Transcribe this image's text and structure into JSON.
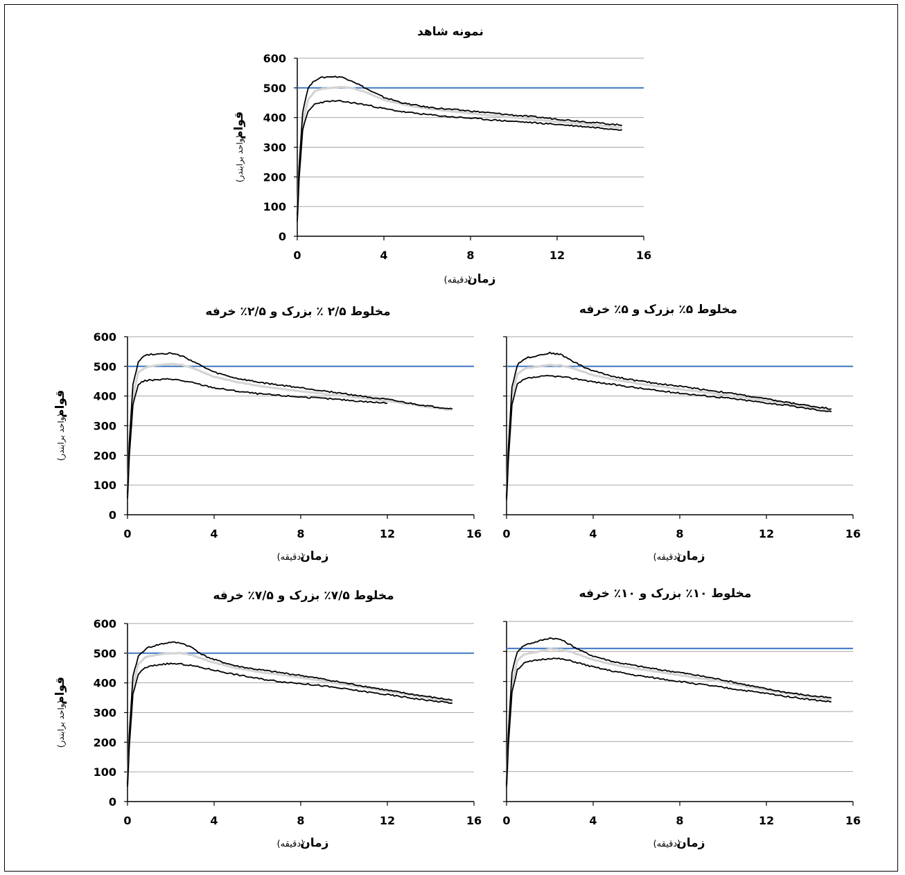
{
  "colors": {
    "target_line": "#4a7fc4",
    "grid": "#a6a6a6",
    "curve_outer": "#000000",
    "curve_mid": "#d4d4d4",
    "axis": "#000000"
  },
  "chart_data": [
    {
      "id": "p1",
      "type": "line",
      "title": "نمونه شاهد",
      "xlabel": "زمان",
      "xlabel_unit": "(دقیقه)",
      "ylabel": "قوام",
      "ylabel_unit": "(واحد برابندر)",
      "xlim": [
        0,
        16
      ],
      "ylim": [
        0,
        600
      ],
      "xticks": [
        "0",
        "4",
        "8",
        "12",
        "16"
      ],
      "yticks": [
        "0",
        "100",
        "200",
        "300",
        "400",
        "500",
        "600"
      ],
      "grid": true,
      "reference_line_y": 500,
      "series": [
        {
          "role": "upper",
          "x": [
            0,
            0.08,
            0.25,
            0.5,
            0.8,
            1,
            1.5,
            2,
            2.5,
            3,
            3.5,
            4,
            5,
            6,
            7,
            8,
            9,
            10,
            11,
            12,
            13,
            14,
            15
          ],
          "values": [
            70,
            230,
            420,
            500,
            525,
            533,
            538,
            537,
            525,
            505,
            485,
            468,
            447,
            435,
            428,
            422,
            415,
            408,
            402,
            395,
            388,
            381,
            374
          ]
        },
        {
          "role": "middle",
          "x": [
            0,
            0.08,
            0.25,
            0.5,
            0.8,
            1,
            1.5,
            2,
            2.5,
            3,
            3.5,
            4,
            5,
            6,
            7,
            8,
            9,
            10,
            11,
            12,
            13,
            14,
            15
          ],
          "values": [
            60,
            210,
            385,
            460,
            488,
            495,
            500,
            503,
            500,
            490,
            475,
            460,
            442,
            430,
            422,
            414,
            407,
            400,
            393,
            386,
            380,
            373,
            366
          ]
        },
        {
          "role": "lower",
          "x": [
            0,
            0.08,
            0.25,
            0.5,
            0.8,
            1,
            1.5,
            2,
            2.5,
            3,
            3.5,
            4,
            5,
            6,
            7,
            8,
            9,
            10,
            11,
            12,
            13,
            14,
            15
          ],
          "values": [
            50,
            190,
            360,
            420,
            445,
            450,
            455,
            455,
            450,
            445,
            438,
            430,
            418,
            410,
            403,
            398,
            392,
            387,
            382,
            377,
            371,
            365,
            359
          ]
        }
      ]
    },
    {
      "id": "p2",
      "type": "line",
      "title": "مخلوط ۲/۵ ٪ بزرک و ۲/۵٪ خرفه",
      "xlabel": "زمان",
      "xlabel_unit": "(دقیقه)",
      "ylabel": "قوام",
      "ylabel_unit": "(واحد برابندر)",
      "xlim": [
        0,
        16
      ],
      "ylim": [
        0,
        600
      ],
      "xticks": [
        "0",
        "4",
        "8",
        "12",
        "16"
      ],
      "yticks": [
        "0",
        "100",
        "200",
        "300",
        "400",
        "500",
        "600"
      ],
      "grid": true,
      "reference_line_y": 500,
      "series": [
        {
          "role": "upper",
          "x": [
            0,
            0.08,
            0.25,
            0.5,
            0.8,
            1,
            1.5,
            2,
            2.5,
            3,
            3.5,
            4,
            5,
            6,
            7,
            8,
            9,
            10,
            11,
            12,
            13,
            14,
            15
          ],
          "values": [
            70,
            240,
            440,
            515,
            538,
            540,
            543,
            544,
            535,
            518,
            498,
            480,
            460,
            447,
            437,
            428,
            418,
            408,
            398,
            388,
            376,
            365,
            357
          ]
        },
        {
          "role": "middle",
          "x": [
            0,
            0.08,
            0.25,
            0.5,
            0.8,
            1,
            1.5,
            2,
            2.5,
            3,
            3.5,
            4,
            5,
            6,
            7,
            8,
            9,
            10,
            11,
            12,
            13,
            14,
            15
          ],
          "values": [
            60,
            215,
            400,
            480,
            495,
            500,
            505,
            508,
            505,
            495,
            480,
            465,
            448,
            435,
            425,
            416,
            408,
            400,
            392,
            384,
            373,
            362,
            353
          ]
        },
        {
          "role": "lower",
          "x": [
            0,
            0.08,
            0.25,
            0.5,
            0.8,
            1,
            1.5,
            2,
            2.5,
            3,
            3.5,
            4,
            5,
            6,
            7,
            8,
            9,
            10,
            11,
            12
          ],
          "values": [
            55,
            195,
            370,
            440,
            452,
            453,
            455,
            458,
            452,
            445,
            436,
            428,
            417,
            408,
            402,
            397,
            392,
            387,
            381,
            376
          ]
        }
      ]
    },
    {
      "id": "p3",
      "type": "line",
      "title": "مخلوط ۵٪ بزرک و ۵٪ خرفه",
      "xlabel": "زمان",
      "xlabel_unit": "(دقیقه)",
      "ylabel": "",
      "ylabel_unit": "",
      "xlim": [
        0,
        16
      ],
      "ylim": [
        0,
        600
      ],
      "xticks": [
        "0",
        "4",
        "8",
        "12",
        "16"
      ],
      "yticks": [],
      "grid": true,
      "reference_line_y": 500,
      "series": [
        {
          "role": "upper",
          "x": [
            0,
            0.08,
            0.25,
            0.5,
            0.8,
            1,
            1.5,
            2,
            2.5,
            3,
            3.5,
            4,
            5,
            6,
            7,
            8,
            9,
            10,
            11,
            12,
            13,
            14,
            15
          ],
          "values": [
            60,
            220,
            430,
            505,
            525,
            530,
            538,
            545,
            540,
            520,
            500,
            485,
            465,
            452,
            442,
            433,
            423,
            413,
            402,
            390,
            378,
            367,
            357
          ]
        },
        {
          "role": "middle",
          "x": [
            0,
            0.08,
            0.25,
            0.5,
            0.8,
            1,
            1.5,
            2,
            2.5,
            3,
            3.5,
            4,
            5,
            6,
            7,
            8,
            9,
            10,
            11,
            12,
            13,
            14,
            15
          ],
          "values": [
            55,
            200,
            400,
            475,
            490,
            495,
            500,
            505,
            503,
            495,
            483,
            470,
            455,
            443,
            433,
            423,
            414,
            405,
            395,
            385,
            374,
            363,
            352
          ]
        },
        {
          "role": "lower",
          "x": [
            0,
            0.08,
            0.25,
            0.5,
            0.8,
            1,
            1.5,
            2,
            2.5,
            3,
            3.5,
            4,
            5,
            6,
            7,
            8,
            9,
            10,
            11,
            12,
            13,
            14,
            15
          ],
          "values": [
            50,
            180,
            370,
            440,
            455,
            460,
            465,
            468,
            465,
            460,
            455,
            448,
            438,
            428,
            418,
            410,
            402,
            395,
            386,
            377,
            368,
            357,
            347
          ]
        }
      ]
    },
    {
      "id": "p4",
      "type": "line",
      "title": "مخلوط ۷/۵٪ بزرک و ۷/۵٪ خرفه",
      "xlabel": "زمان",
      "xlabel_unit": "(دقیقه)",
      "ylabel": "قوام",
      "ylabel_unit": "(واحد برابندر)",
      "xlim": [
        0,
        16
      ],
      "ylim": [
        0,
        600
      ],
      "xticks": [
        "0",
        "4",
        "8",
        "12",
        "16"
      ],
      "yticks": [
        "0",
        "100",
        "200",
        "300",
        "400",
        "500",
        "600"
      ],
      "grid": true,
      "reference_line_y": 500,
      "series": [
        {
          "role": "upper",
          "x": [
            0,
            0.08,
            0.25,
            0.5,
            0.8,
            1,
            1.5,
            2,
            2.5,
            3,
            3.5,
            4,
            5,
            6,
            7,
            8,
            9,
            10,
            11,
            12,
            13,
            14,
            15
          ],
          "values": [
            60,
            225,
            420,
            490,
            512,
            520,
            530,
            537,
            534,
            518,
            493,
            478,
            457,
            445,
            435,
            425,
            413,
            400,
            388,
            375,
            363,
            352,
            342
          ]
        },
        {
          "role": "middle",
          "x": [
            0,
            0.08,
            0.25,
            0.5,
            0.8,
            1,
            1.5,
            2,
            2.5,
            3,
            3.5,
            4,
            5,
            6,
            7,
            8,
            9,
            10,
            11,
            12,
            13,
            14,
            15
          ],
          "values": [
            55,
            205,
            390,
            462,
            485,
            490,
            496,
            500,
            500,
            493,
            480,
            468,
            450,
            438,
            428,
            418,
            407,
            395,
            384,
            372,
            360,
            348,
            337
          ]
        },
        {
          "role": "lower",
          "x": [
            0,
            0.08,
            0.25,
            0.5,
            0.8,
            1,
            1.5,
            2,
            2.5,
            3,
            3.5,
            4,
            5,
            6,
            7,
            8,
            9,
            10,
            11,
            12,
            13,
            14,
            15
          ],
          "values": [
            50,
            185,
            360,
            430,
            450,
            455,
            462,
            465,
            463,
            458,
            450,
            443,
            428,
            415,
            405,
            398,
            390,
            380,
            370,
            360,
            350,
            340,
            332
          ]
        }
      ]
    },
    {
      "id": "p5",
      "type": "line",
      "title": "مخلوط ۱۰٪ بزرک و ۱۰٪ خرفه",
      "xlabel": "زمان",
      "xlabel_unit": "(دقیقه)",
      "ylabel": "",
      "ylabel_unit": "",
      "xlim": [
        0,
        16
      ],
      "ylim": [
        0,
        600
      ],
      "xticks": [
        "0",
        "4",
        "8",
        "12",
        "16"
      ],
      "yticks": [],
      "grid": true,
      "reference_line_y": 510,
      "series": [
        {
          "role": "upper",
          "x": [
            0,
            0.08,
            0.25,
            0.5,
            0.8,
            1,
            1.5,
            2,
            2.5,
            3,
            3.5,
            4,
            5,
            6,
            7,
            8,
            9,
            10,
            11,
            12,
            13,
            14,
            15
          ],
          "values": [
            60,
            225,
            430,
            500,
            520,
            525,
            535,
            545,
            540,
            520,
            500,
            485,
            465,
            452,
            440,
            430,
            418,
            405,
            390,
            375,
            363,
            353,
            345
          ]
        },
        {
          "role": "middle",
          "x": [
            0,
            0.08,
            0.25,
            0.5,
            0.8,
            1,
            1.5,
            2,
            2.5,
            3,
            3.5,
            4,
            5,
            6,
            7,
            8,
            9,
            10,
            11,
            12,
            13,
            14,
            15
          ],
          "values": [
            55,
            205,
            395,
            470,
            490,
            493,
            500,
            508,
            506,
            498,
            485,
            473,
            455,
            443,
            432,
            421,
            410,
            398,
            385,
            372,
            360,
            349,
            340
          ]
        },
        {
          "role": "lower",
          "x": [
            0,
            0.08,
            0.25,
            0.5,
            0.8,
            1,
            1.5,
            2,
            2.5,
            3,
            3.5,
            4,
            5,
            6,
            7,
            8,
            9,
            10,
            11,
            12,
            13,
            14,
            15
          ],
          "values": [
            50,
            185,
            365,
            440,
            460,
            465,
            472,
            477,
            475,
            468,
            458,
            448,
            433,
            420,
            410,
            400,
            390,
            380,
            370,
            360,
            350,
            340,
            332
          ]
        }
      ]
    }
  ]
}
